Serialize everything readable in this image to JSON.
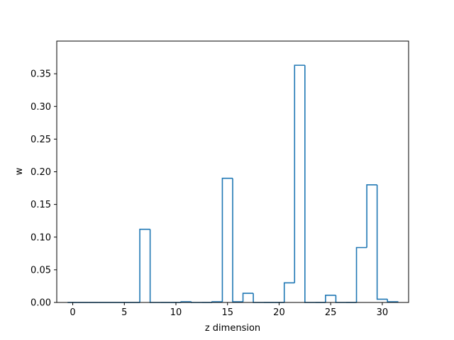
{
  "chart_data": {
    "type": "bar",
    "style": "step-histogram",
    "xlabel": "z dimension",
    "ylabel": "w",
    "xlim": [
      -1.55,
      32.55
    ],
    "ylim": [
      0,
      0.4
    ],
    "xticks": [
      0,
      5,
      10,
      15,
      20,
      25,
      30
    ],
    "yticks": [
      0.0,
      0.05,
      0.1,
      0.15,
      0.2,
      0.25,
      0.3,
      0.35
    ],
    "grid": false,
    "line_color": "#1f77b4",
    "bin_edges": [
      -0.5,
      0.5,
      1.5,
      2.5,
      3.5,
      4.5,
      5.5,
      6.5,
      7.5,
      8.5,
      9.5,
      10.5,
      11.5,
      12.5,
      13.5,
      14.5,
      15.5,
      16.5,
      17.5,
      18.5,
      19.5,
      20.5,
      21.5,
      22.5,
      23.5,
      24.5,
      25.5,
      26.5,
      27.5,
      28.5,
      29.5,
      30.5,
      31.5
    ],
    "values": [
      0.0,
      0.0,
      0.0,
      0.0,
      0.0,
      0.0,
      0.0,
      0.112,
      0.0,
      0.0,
      0.0,
      0.001,
      0.0,
      0.0,
      0.001,
      0.19,
      0.001,
      0.014,
      0.0,
      0.0,
      0.0,
      0.03,
      0.363,
      0.0,
      0.0,
      0.011,
      0.0,
      0.0,
      0.084,
      0.18,
      0.005,
      0.001
    ]
  }
}
